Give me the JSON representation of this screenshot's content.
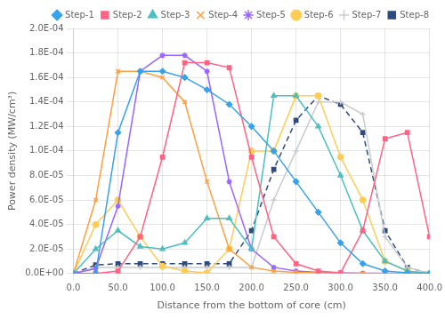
{
  "chart_data": {
    "type": "line",
    "xlabel": "Distance from the bottom of core (cm)",
    "ylabel": "Power density (MW/cm³)",
    "xlim": [
      0.0,
      400.0
    ],
    "ylim": [
      0.0,
      0.0002
    ],
    "xticks": [
      {
        "value": 0.0,
        "label": "0.0"
      },
      {
        "value": 50.0,
        "label": "50.0"
      },
      {
        "value": 100.0,
        "label": "100.0"
      },
      {
        "value": 150.0,
        "label": "150.0"
      },
      {
        "value": 200.0,
        "label": "200.0"
      },
      {
        "value": 250.0,
        "label": "250.0"
      },
      {
        "value": 300.0,
        "label": "300.0"
      },
      {
        "value": 350.0,
        "label": "350.0"
      },
      {
        "value": 400.0,
        "label": "400.0"
      }
    ],
    "yticks": [
      {
        "value": 0.0,
        "label": "0.0E+00"
      },
      {
        "value": 2e-05,
        "label": "2.0E-05"
      },
      {
        "value": 4e-05,
        "label": "4.0E-05"
      },
      {
        "value": 6e-05,
        "label": "6.0E-05"
      },
      {
        "value": 8e-05,
        "label": "8.0E-05"
      },
      {
        "value": 0.0001,
        "label": "1.0E-04"
      },
      {
        "value": 0.00012,
        "label": "1.2E-04"
      },
      {
        "value": 0.00014,
        "label": "1.4E-04"
      },
      {
        "value": 0.00016,
        "label": "1.6E-04"
      },
      {
        "value": 0.00018,
        "label": "1.8E-04"
      },
      {
        "value": 0.0002,
        "label": "2.0E-04"
      }
    ],
    "x": [
      0,
      25,
      50,
      75,
      100,
      125,
      150,
      175,
      200,
      225,
      250,
      275,
      300,
      325,
      350,
      375,
      400
    ],
    "series": [
      {
        "name": "Step-1",
        "marker": "diamond",
        "line_style": "solid",
        "values": [
          0,
          0,
          0.000115,
          0.000165,
          0.000165,
          0.00016,
          0.00015,
          0.000138,
          0.00012,
          0.0001,
          7.5e-05,
          5e-05,
          2.5e-05,
          8e-06,
          2e-06,
          5e-07,
          0
        ]
      },
      {
        "name": "Step-2",
        "marker": "square",
        "line_style": "solid",
        "values": [
          0,
          0,
          2e-06,
          3e-05,
          9.5e-05,
          0.000172,
          0.000172,
          0.000168,
          9.5e-05,
          3e-05,
          8e-06,
          2e-06,
          5e-07,
          3.5e-05,
          0.00011,
          0.000115,
          3e-05
        ]
      },
      {
        "name": "Step-3",
        "marker": "triangle",
        "line_style": "solid",
        "values": [
          0,
          2e-05,
          3.5e-05,
          2.2e-05,
          2e-05,
          2.5e-05,
          4.5e-05,
          4.5e-05,
          2e-05,
          0.000145,
          0.000145,
          0.00012,
          8e-05,
          3.5e-05,
          1e-05,
          2e-06,
          0
        ]
      },
      {
        "name": "Step-4",
        "marker": "x",
        "line_style": "solid",
        "values": [
          0,
          6e-05,
          0.000165,
          0.000165,
          0.00016,
          0.00014,
          7.5e-05,
          2e-05,
          5e-06,
          2e-06,
          1e-06,
          5e-07,
          3e-07,
          2e-07,
          1e-07,
          5e-08,
          0
        ]
      },
      {
        "name": "Step-5",
        "marker": "star",
        "line_style": "solid",
        "values": [
          0,
          4e-06,
          5.5e-05,
          0.000165,
          0.000178,
          0.000178,
          0.000165,
          7.5e-05,
          2e-05,
          5e-06,
          2e-06,
          1e-06,
          5e-07,
          3e-07,
          2e-07,
          1e-07,
          0
        ]
      },
      {
        "name": "Step-6",
        "marker": "circle",
        "line_style": "solid",
        "values": [
          0,
          4e-05,
          6e-05,
          3e-05,
          6e-06,
          2e-06,
          5e-07,
          2e-05,
          0.0001,
          0.0001,
          0.000145,
          0.000145,
          9.5e-05,
          6e-05,
          1e-05,
          2e-06,
          0
        ]
      },
      {
        "name": "Step-7",
        "marker": "plus",
        "line_style": "solid",
        "values": [
          0,
          5e-06,
          5e-06,
          5e-06,
          5e-06,
          5e-06,
          5e-06,
          5e-06,
          5e-06,
          6e-05,
          0.0001,
          0.00014,
          0.00014,
          0.00013,
          3e-05,
          5e-06,
          0
        ]
      },
      {
        "name": "Step-8",
        "marker": "square",
        "line_style": "dashed",
        "values": [
          0,
          7e-06,
          8e-06,
          8e-06,
          8e-06,
          8e-06,
          8e-06,
          8e-06,
          3.5e-05,
          8.5e-05,
          0.000125,
          0.000145,
          0.000138,
          0.000115,
          3.5e-05,
          5e-06,
          0
        ]
      }
    ],
    "legend": "upper right",
    "grid": true
  }
}
